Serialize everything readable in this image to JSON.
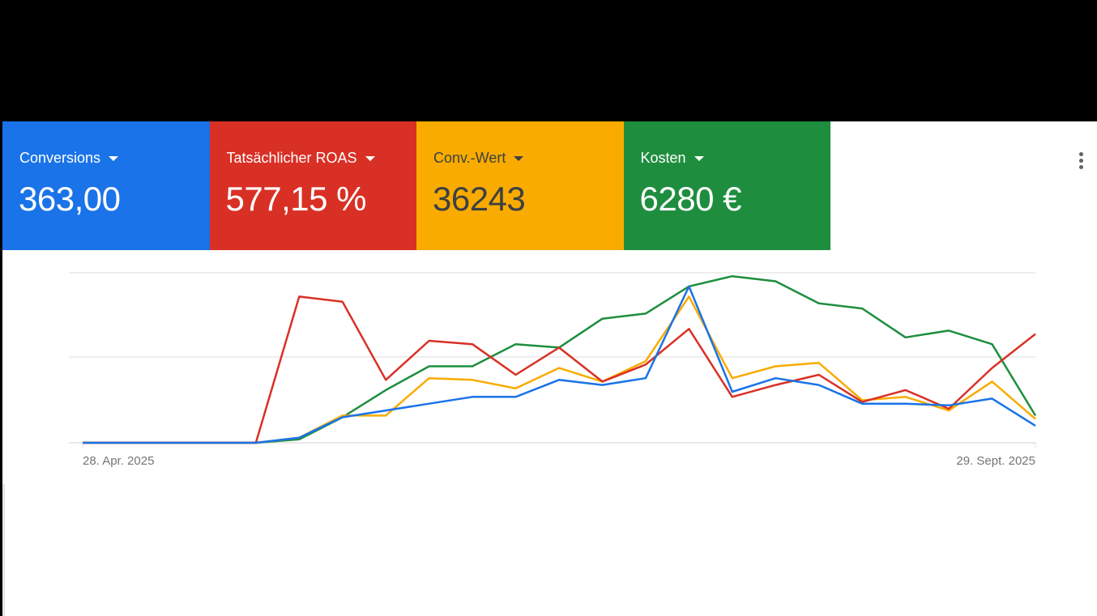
{
  "scorecards": [
    {
      "label": "Conversions",
      "value": "363,00",
      "bg": "#1a73e8",
      "fg": "#ffffff"
    },
    {
      "label": "Tatsächlicher ROAS",
      "value": "577,15 %",
      "bg": "#d93025",
      "fg": "#ffffff"
    },
    {
      "label": "Conv.-Wert",
      "value": "36243",
      "bg": "#f9ab00",
      "fg": "#3c4043"
    },
    {
      "label": "Kosten",
      "value": "6280 €",
      "bg": "#1e8e3e",
      "fg": "#ffffff"
    }
  ],
  "menu": {
    "icon": "more-vert-icon"
  },
  "chart": {
    "x_start_label": "28. Apr. 2025",
    "x_end_label": "29. Sept. 2025"
  },
  "chart_data": {
    "type": "line",
    "title": "",
    "xlabel": "",
    "ylabel": "",
    "x_tick_labels": [
      "28. Apr. 2025",
      "29. Sept. 2025"
    ],
    "x": [
      0,
      1,
      2,
      3,
      4,
      5,
      6,
      7,
      8,
      9,
      10,
      11,
      12,
      13,
      14,
      15,
      16,
      17,
      18,
      19,
      20,
      21,
      22
    ],
    "y_scale_note": "normalized 0-100 per chart height (no y-axis labels shown)",
    "ylim": [
      0,
      100
    ],
    "grid": true,
    "legend": "scorecards above chart",
    "series": [
      {
        "name": "Conversions",
        "color": "#1a73e8",
        "values": [
          0,
          0,
          0,
          0,
          0,
          3,
          15,
          19,
          23,
          27,
          27,
          37,
          34,
          38,
          92,
          30,
          38,
          34,
          23,
          23,
          22,
          26,
          10
        ]
      },
      {
        "name": "Tatsächlicher ROAS",
        "color": "#d93025",
        "values": [
          0,
          0,
          0,
          0,
          0,
          86,
          83,
          37,
          60,
          58,
          40,
          56,
          36,
          46,
          67,
          27,
          34,
          40,
          24,
          31,
          20,
          44,
          64
        ]
      },
      {
        "name": "Conv.-Wert",
        "color": "#f9ab00",
        "values": [
          0,
          0,
          0,
          0,
          0,
          3,
          16,
          16,
          38,
          37,
          32,
          44,
          36,
          48,
          86,
          38,
          45,
          47,
          25,
          27,
          19,
          36,
          14
        ]
      },
      {
        "name": "Kosten",
        "color": "#1e8e3e",
        "values": [
          0,
          0,
          0,
          0,
          0,
          2,
          15,
          31,
          45,
          45,
          58,
          56,
          73,
          76,
          92,
          98,
          95,
          82,
          79,
          62,
          66,
          58,
          16
        ]
      }
    ]
  }
}
